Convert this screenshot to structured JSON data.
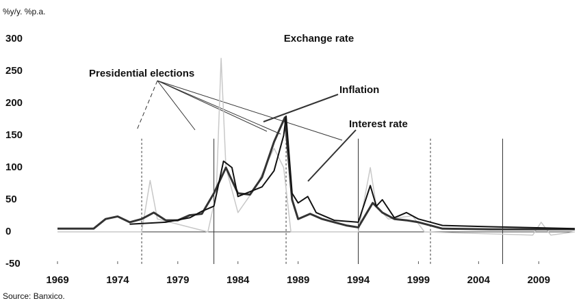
{
  "chart_data": {
    "type": "line",
    "title": "Exchange rate",
    "y_label": "%y/y. %p.a.",
    "source": "Source: Banxico.",
    "annotations": [
      "Presidential elections",
      "Inflation",
      "Interest rate"
    ],
    "election_years": [
      1976,
      1982,
      1988,
      1994,
      2000,
      2006
    ],
    "xlim": [
      1969,
      2012
    ],
    "xticks": [
      1969,
      1974,
      1979,
      1984,
      1989,
      1994,
      1999,
      2004,
      2009
    ],
    "ylim": [
      -50,
      300
    ],
    "yticks": [
      -50,
      0,
      50,
      100,
      150,
      200,
      250,
      300
    ],
    "series": [
      {
        "name": "Exchange rate",
        "color": "#c8c8c8",
        "x": [
          1969,
          1976,
          1976.7,
          1977.3,
          1981.5,
          1982.2,
          1982.6,
          1983,
          1984,
          1985.5,
          1987,
          1987.8,
          1988.4,
          1994,
          1995,
          1995.5,
          1996.5,
          1998.5,
          1999.5,
          2008.5,
          2009.2,
          2010,
          2012
        ],
        "values": [
          0,
          0,
          80,
          20,
          0,
          60,
          270,
          100,
          30,
          70,
          130,
          100,
          0,
          0,
          100,
          40,
          20,
          25,
          0,
          -5,
          15,
          -5,
          0
        ]
      },
      {
        "name": "Inflation",
        "color": "#333333",
        "x": [
          1969,
          1972,
          1973,
          1974,
          1975,
          1976,
          1977,
          1978,
          1979,
          1980,
          1981,
          1982,
          1983,
          1984,
          1985,
          1986,
          1987,
          1987.9,
          1988.5,
          1989,
          1990,
          1991,
          1992,
          1993,
          1994,
          1995.2,
          1996,
          1997,
          1998,
          1999,
          2000,
          2001,
          2005,
          2012
        ],
        "values": [
          5,
          5,
          20,
          24,
          15,
          20,
          30,
          18,
          18,
          26,
          28,
          60,
          100,
          60,
          58,
          85,
          140,
          178,
          50,
          20,
          28,
          20,
          15,
          10,
          7,
          45,
          30,
          20,
          18,
          15,
          10,
          5,
          4,
          4
        ]
      },
      {
        "name": "Interest rate",
        "color": "#111111",
        "x": [
          1975,
          1978,
          1980,
          1981,
          1982,
          1982.8,
          1983.5,
          1984,
          1986,
          1987,
          1987.8,
          1988,
          1988.5,
          1989,
          1989.8,
          1990.5,
          1992,
          1994,
          1995,
          1995.5,
          1996,
          1997,
          1998,
          1999,
          2001,
          2005,
          2012
        ],
        "values": [
          12,
          15,
          22,
          32,
          40,
          110,
          100,
          55,
          70,
          95,
          150,
          180,
          60,
          45,
          55,
          30,
          18,
          15,
          72,
          40,
          50,
          22,
          30,
          20,
          10,
          8,
          5
        ]
      }
    ]
  }
}
